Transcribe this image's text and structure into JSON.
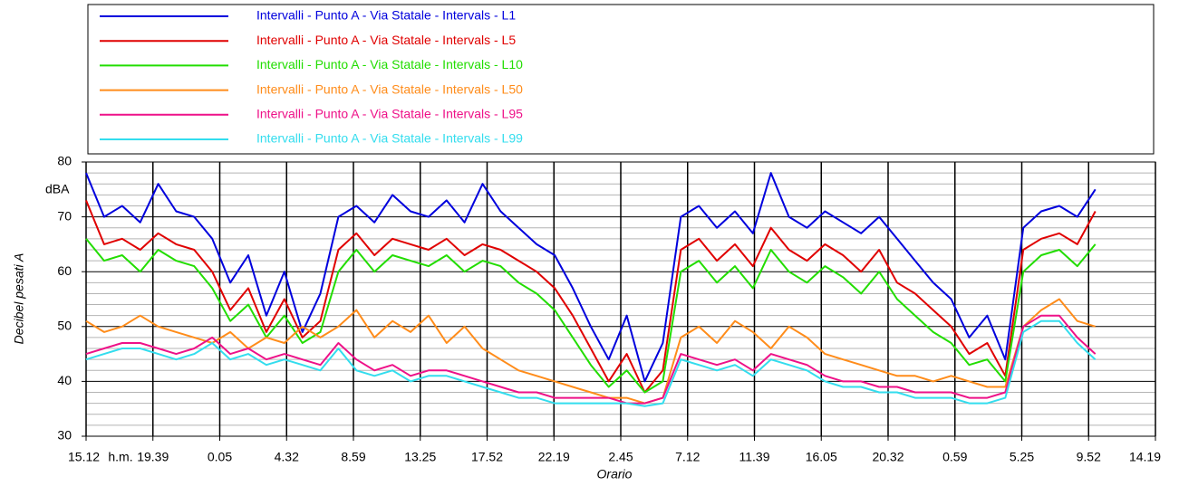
{
  "chart_data": {
    "type": "line",
    "y_label": "Decibel pesati A",
    "y_unit": "dBA",
    "x_label": "Orario",
    "x_unit": "h.m.",
    "x": [
      0,
      1.2,
      2.4,
      3.6,
      4.8,
      6,
      7.2,
      8.4,
      9.6,
      10.8,
      12,
      13.2,
      14.4,
      15.6,
      16.8,
      18,
      19.2,
      20.4,
      21.6,
      22.8,
      24,
      25.2,
      26.4,
      27.6,
      28.8,
      30,
      31.2,
      32.4,
      33.6,
      34.8,
      36,
      37.2,
      38.4,
      39.6,
      40.8,
      42,
      43.2,
      44.4,
      45.6,
      46.8,
      48,
      49.2,
      50.4,
      51.6,
      52.8,
      54,
      55.2,
      56.4,
      57.6,
      58.8,
      60,
      61.2,
      62.4,
      63.6,
      64.8,
      66,
      67.2
    ],
    "series": [
      {
        "name": "Intervalli - Punto A - Via Statale - Intervals - L1",
        "color": "#0000dd",
        "values": [
          78,
          70,
          72,
          69,
          76,
          71,
          70,
          66,
          58,
          63,
          52,
          60,
          49,
          56,
          70,
          72,
          69,
          74,
          71,
          70,
          73,
          69,
          76,
          71,
          68,
          65,
          63,
          57,
          50,
          44,
          52,
          40,
          47,
          70,
          72,
          68,
          71,
          67,
          78,
          70,
          68,
          71,
          69,
          67,
          70,
          66,
          62,
          58,
          55,
          48,
          52,
          44,
          68,
          71,
          72,
          70,
          75
        ]
      },
      {
        "name": "Intervalli - Punto A - Via Statale - Intervals - L5",
        "color": "#e00000",
        "values": [
          73,
          65,
          66,
          64,
          67,
          65,
          64,
          60,
          53,
          57,
          49,
          55,
          48,
          51,
          64,
          67,
          63,
          66,
          65,
          64,
          66,
          63,
          65,
          64,
          62,
          60,
          57,
          52,
          46,
          40,
          45,
          38,
          42,
          64,
          66,
          62,
          65,
          61,
          68,
          64,
          62,
          65,
          63,
          60,
          64,
          58,
          56,
          53,
          50,
          45,
          47,
          41,
          64,
          66,
          67,
          65,
          71
        ]
      },
      {
        "name": "Intervalli - Punto A - Via Statale - Intervals - L10",
        "color": "#22dd00",
        "values": [
          66,
          62,
          63,
          60,
          64,
          62,
          61,
          57,
          51,
          54,
          48,
          52,
          47,
          49,
          60,
          64,
          60,
          63,
          62,
          61,
          63,
          60,
          62,
          61,
          58,
          56,
          53,
          48,
          43,
          39,
          42,
          38,
          40,
          60,
          62,
          58,
          61,
          57,
          64,
          60,
          58,
          61,
          59,
          56,
          60,
          55,
          52,
          49,
          47,
          43,
          44,
          40,
          60,
          63,
          64,
          61,
          65
        ]
      },
      {
        "name": "Intervalli - Punto A - Via Statale - Intervals - L50",
        "color": "#ff8c1a",
        "values": [
          51,
          49,
          50,
          52,
          50,
          49,
          48,
          47,
          49,
          46,
          48,
          47,
          50,
          48,
          50,
          53,
          48,
          51,
          49,
          52,
          47,
          50,
          46,
          44,
          42,
          41,
          40,
          39,
          38,
          37,
          37,
          36,
          37,
          48,
          50,
          47,
          51,
          49,
          46,
          50,
          48,
          45,
          44,
          43,
          42,
          41,
          41,
          40,
          41,
          40,
          39,
          39,
          50,
          53,
          55,
          51,
          50
        ]
      },
      {
        "name": "Intervalli - Punto A - Via Statale - Intervals - L95",
        "color": "#ee1188",
        "values": [
          45,
          46,
          47,
          47,
          46,
          45,
          46,
          48,
          45,
          46,
          44,
          45,
          44,
          43,
          47,
          44,
          42,
          43,
          41,
          42,
          42,
          41,
          40,
          39,
          38,
          38,
          37,
          37,
          37,
          37,
          36,
          36,
          37,
          45,
          44,
          43,
          44,
          42,
          45,
          44,
          43,
          41,
          40,
          40,
          39,
          39,
          38,
          38,
          38,
          37,
          37,
          38,
          50,
          52,
          52,
          48,
          45
        ]
      },
      {
        "name": "Intervalli - Punto A - Via Statale - Intervals - L99",
        "color": "#33ddee",
        "values": [
          44,
          45,
          46,
          46,
          45,
          44,
          45,
          47,
          44,
          45,
          43,
          44,
          43,
          42,
          46,
          42,
          41,
          42,
          40,
          41,
          41,
          40,
          39,
          38,
          37,
          37,
          36,
          36,
          36,
          36,
          36,
          35.5,
          36,
          44,
          43,
          42,
          43,
          41,
          44,
          43,
          42,
          40,
          39,
          39,
          38,
          38,
          37,
          37,
          37,
          36,
          36,
          37,
          49,
          51,
          51,
          47,
          44
        ]
      }
    ],
    "xlim": [
      0,
      71.2
    ],
    "xticks": [
      {
        "value": 0,
        "label": "15.12"
      },
      {
        "value": 4.45,
        "label": "19.39"
      },
      {
        "value": 8.9,
        "label": "0.05"
      },
      {
        "value": 13.35,
        "label": "4.32"
      },
      {
        "value": 17.8,
        "label": "8.59"
      },
      {
        "value": 22.25,
        "label": "13.25"
      },
      {
        "value": 26.7,
        "label": "17.52"
      },
      {
        "value": 31.15,
        "label": "22.19"
      },
      {
        "value": 35.6,
        "label": "2.45"
      },
      {
        "value": 40.05,
        "label": "7.12"
      },
      {
        "value": 44.5,
        "label": "11.39"
      },
      {
        "value": 48.95,
        "label": "16.05"
      },
      {
        "value": 53.4,
        "label": "20.32"
      },
      {
        "value": 57.85,
        "label": "0.59"
      },
      {
        "value": 62.3,
        "label": "5.25"
      },
      {
        "value": 66.75,
        "label": "9.52"
      },
      {
        "value": 71.2,
        "label": "14.19"
      }
    ],
    "ylim": [
      30,
      80
    ],
    "yticks": [
      30,
      40,
      50,
      60,
      70,
      80
    ],
    "yminor": [
      32,
      34,
      36,
      38,
      42,
      44,
      46,
      48,
      52,
      54,
      56,
      58,
      62,
      64,
      66,
      68,
      72,
      74,
      76,
      78
    ],
    "grid": true
  }
}
